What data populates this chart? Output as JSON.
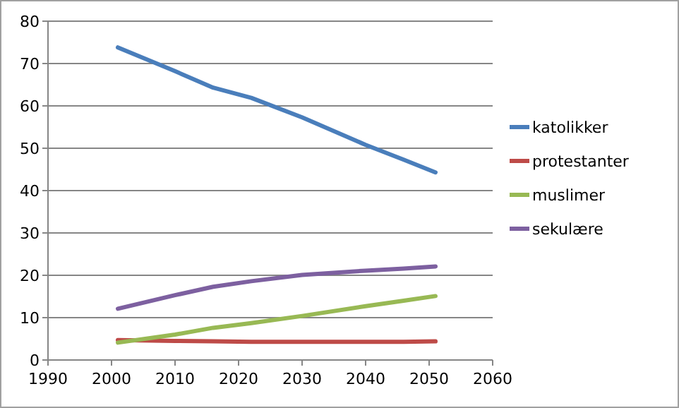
{
  "chart_data": {
    "type": "line",
    "x": [
      2001,
      2010,
      2016,
      2022,
      2030,
      2040,
      2046,
      2051
    ],
    "series": [
      {
        "name": "katolikker",
        "color": "#4a7ebb",
        "values": [
          73.8,
          68.2,
          64.3,
          61.9,
          57.3,
          50.8,
          47.3,
          44.3
        ]
      },
      {
        "name": "protestanter",
        "color": "#be4b48",
        "values": [
          4.7,
          4.5,
          4.4,
          4.3,
          4.3,
          4.3,
          4.3,
          4.4
        ]
      },
      {
        "name": "muslimer",
        "color": "#98b954",
        "values": [
          4.1,
          6,
          7.6,
          8.7,
          10.4,
          12.7,
          14,
          15.1
        ]
      },
      {
        "name": "sekulære",
        "color": "#7d60a0",
        "values": [
          12.1,
          15.3,
          17.3,
          18.6,
          20.1,
          21.1,
          21.6,
          22.1
        ]
      }
    ],
    "xlim": [
      1990,
      2060
    ],
    "xticks": [
      1990,
      2000,
      2010,
      2020,
      2030,
      2040,
      2050,
      2060
    ],
    "ylim": [
      0,
      80
    ],
    "yticks": [
      0,
      10,
      20,
      30,
      40,
      50,
      60,
      70,
      80
    ],
    "grid": "y",
    "legend": "right",
    "marker": "none",
    "line_style": "solid"
  }
}
